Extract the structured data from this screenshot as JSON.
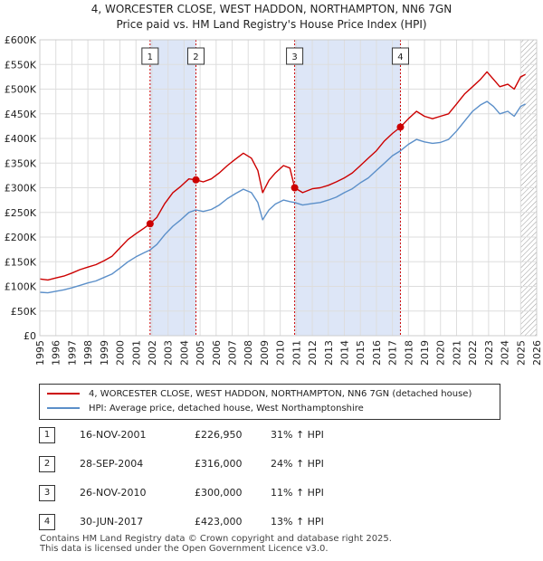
{
  "title_line1": "4, WORCESTER CLOSE, WEST HADDON, NORTHAMPTON, NN6 7GN",
  "title_line2": "Price paid vs. HM Land Registry's House Price Index (HPI)",
  "colors": {
    "property": "#cc0000",
    "hpi": "#5b8fc9",
    "shade": "#dde6f7",
    "grid": "#dddddd",
    "marker_border": "#333333"
  },
  "legend": {
    "property_label": "4, WORCESTER CLOSE, WEST HADDON, NORTHAMPTON, NN6 7GN (detached house)",
    "hpi_label": "HPI: Average price, detached house, West Northamptonshire"
  },
  "sales": [
    {
      "num": "1",
      "date": "16-NOV-2001",
      "price": "£226,950",
      "hpi_change": "31% ↑ HPI"
    },
    {
      "num": "2",
      "date": "28-SEP-2004",
      "price": "£316,000",
      "hpi_change": "24% ↑ HPI"
    },
    {
      "num": "3",
      "date": "26-NOV-2010",
      "price": "£300,000",
      "hpi_change": "11% ↑ HPI"
    },
    {
      "num": "4",
      "date": "30-JUN-2017",
      "price": "£423,000",
      "hpi_change": "13% ↑ HPI"
    }
  ],
  "footer_line1": "Contains HM Land Registry data © Crown copyright and database right 2025.",
  "footer_line2": "This data is licensed under the Open Government Licence v3.0.",
  "chart_data": {
    "type": "line",
    "title": "4, WORCESTER CLOSE, WEST HADDON, NORTHAMPTON, NN6 7GN",
    "subtitle": "Price paid vs. HM Land Registry's House Price Index (HPI)",
    "xlabel": "",
    "ylabel": "",
    "xlim": [
      1995,
      2026
    ],
    "ylim": [
      0,
      600000
    ],
    "x_ticks": [
      1995,
      1996,
      1997,
      1998,
      1999,
      2000,
      2001,
      2002,
      2003,
      2004,
      2005,
      2006,
      2007,
      2008,
      2009,
      2010,
      2011,
      2012,
      2013,
      2014,
      2015,
      2016,
      2017,
      2018,
      2019,
      2020,
      2021,
      2022,
      2023,
      2024,
      2025,
      2026
    ],
    "y_ticks": [
      {
        "value": 0,
        "label": "£0"
      },
      {
        "value": 50000,
        "label": "£50K"
      },
      {
        "value": 100000,
        "label": "£100K"
      },
      {
        "value": 150000,
        "label": "£150K"
      },
      {
        "value": 200000,
        "label": "£200K"
      },
      {
        "value": 250000,
        "label": "£250K"
      },
      {
        "value": 300000,
        "label": "£300K"
      },
      {
        "value": 350000,
        "label": "£350K"
      },
      {
        "value": 400000,
        "label": "£400K"
      },
      {
        "value": 450000,
        "label": "£450K"
      },
      {
        "value": 500000,
        "label": "£500K"
      },
      {
        "value": 550000,
        "label": "£550K"
      },
      {
        "value": 600000,
        "label": "£600K"
      }
    ],
    "grid": true,
    "shaded_periods": [
      [
        2001.88,
        2004.74
      ],
      [
        2010.9,
        2017.5
      ]
    ],
    "hatched_from": 2025.0,
    "series": [
      {
        "name": "4, WORCESTER CLOSE, WEST HADDON, NORTHAMPTON, NN6 7GN (detached house)",
        "x": [
          1995.0,
          1995.5,
          1996.0,
          1996.5,
          1997.0,
          1997.5,
          1998.0,
          1998.5,
          1999.0,
          1999.5,
          2000.0,
          2000.5,
          2001.0,
          2001.5,
          2001.88,
          2002.3,
          2002.8,
          2003.3,
          2003.8,
          2004.3,
          2004.74,
          2005.2,
          2005.7,
          2006.2,
          2006.7,
          2007.2,
          2007.7,
          2008.2,
          2008.6,
          2008.9,
          2009.3,
          2009.7,
          2010.2,
          2010.6,
          2010.9,
          2011.4,
          2012.0,
          2012.5,
          2013.0,
          2013.5,
          2014.0,
          2014.5,
          2015.0,
          2015.5,
          2016.0,
          2016.5,
          2017.0,
          2017.5,
          2018.0,
          2018.5,
          2019.0,
          2019.5,
          2020.0,
          2020.5,
          2021.0,
          2021.5,
          2022.0,
          2022.5,
          2022.9,
          2023.3,
          2023.7,
          2024.2,
          2024.6,
          2025.0,
          2025.3
        ],
        "values": [
          115000,
          113000,
          117000,
          121000,
          127000,
          134000,
          139000,
          144000,
          152000,
          161000,
          178000,
          195000,
          207000,
          218000,
          226950,
          240000,
          268000,
          290000,
          303000,
          318000,
          316000,
          312000,
          318000,
          330000,
          345000,
          358000,
          370000,
          360000,
          335000,
          290000,
          315000,
          330000,
          345000,
          340000,
          300000,
          290000,
          298000,
          300000,
          305000,
          312000,
          320000,
          330000,
          345000,
          360000,
          375000,
          395000,
          410000,
          423000,
          440000,
          455000,
          445000,
          440000,
          445000,
          450000,
          470000,
          490000,
          505000,
          520000,
          535000,
          520000,
          505000,
          510000,
          500000,
          525000,
          530000
        ]
      },
      {
        "name": "HPI: Average price, detached house, West Northamptonshire",
        "x": [
          1995.0,
          1995.5,
          1996.0,
          1996.5,
          1997.0,
          1997.5,
          1998.0,
          1998.5,
          1999.0,
          1999.5,
          2000.0,
          2000.5,
          2001.0,
          2001.5,
          2001.88,
          2002.3,
          2002.8,
          2003.3,
          2003.8,
          2004.3,
          2004.74,
          2005.2,
          2005.7,
          2006.2,
          2006.7,
          2007.2,
          2007.7,
          2008.2,
          2008.6,
          2008.9,
          2009.3,
          2009.7,
          2010.2,
          2010.6,
          2010.9,
          2011.4,
          2012.0,
          2012.5,
          2013.0,
          2013.5,
          2014.0,
          2014.5,
          2015.0,
          2015.5,
          2016.0,
          2016.5,
          2017.0,
          2017.5,
          2018.0,
          2018.5,
          2019.0,
          2019.5,
          2020.0,
          2020.5,
          2021.0,
          2021.5,
          2022.0,
          2022.5,
          2022.9,
          2023.3,
          2023.7,
          2024.2,
          2024.6,
          2025.0,
          2025.3
        ],
        "values": [
          88000,
          87000,
          90000,
          93000,
          97000,
          102000,
          107000,
          111000,
          118000,
          125000,
          137000,
          150000,
          160000,
          168000,
          174000,
          185000,
          205000,
          222000,
          235000,
          250000,
          255000,
          252000,
          256000,
          265000,
          278000,
          288000,
          297000,
          290000,
          270000,
          235000,
          255000,
          267000,
          275000,
          272000,
          270000,
          265000,
          268000,
          270000,
          275000,
          281000,
          290000,
          298000,
          310000,
          320000,
          335000,
          350000,
          365000,
          375000,
          388000,
          398000,
          393000,
          390000,
          392000,
          398000,
          415000,
          435000,
          455000,
          468000,
          475000,
          465000,
          450000,
          455000,
          445000,
          465000,
          470000
        ]
      }
    ],
    "markers": [
      {
        "label": "1",
        "x": 2001.88,
        "y": 226950
      },
      {
        "label": "2",
        "x": 2004.74,
        "y": 316000
      },
      {
        "label": "3",
        "x": 2010.9,
        "y": 300000
      },
      {
        "label": "4",
        "x": 2017.5,
        "y": 423000
      }
    ]
  }
}
